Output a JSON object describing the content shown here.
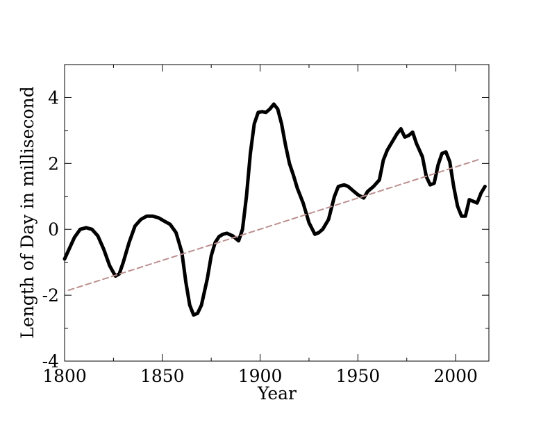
{
  "chart_data": {
    "type": "line",
    "xlabel": "Year",
    "ylabel": "Length of Day in millisecond",
    "xlim": [
      1800,
      2017
    ],
    "ylim": [
      -4,
      5
    ],
    "x_ticks": [
      1800,
      1850,
      1900,
      1950,
      2000
    ],
    "x_tick_labels": [
      "1800",
      "1850",
      "1900",
      "1950",
      "2000"
    ],
    "y_ticks": [
      -4,
      -2,
      0,
      2,
      4
    ],
    "y_tick_labels": [
      "-4",
      "-2",
      "0",
      "2",
      "4"
    ],
    "grid": false,
    "legend": "none",
    "series": [
      {
        "style": "solid",
        "color": "#000000",
        "x": [
          1800,
          1805,
          1808,
          1811,
          1814,
          1817,
          1820,
          1823,
          1826,
          1828,
          1830,
          1833,
          1836,
          1839,
          1842,
          1845,
          1848,
          1851,
          1854,
          1857,
          1860,
          1862,
          1864,
          1866,
          1868,
          1870,
          1873,
          1875,
          1877,
          1879,
          1881,
          1883,
          1886,
          1889,
          1891,
          1893,
          1895,
          1897,
          1899,
          1901,
          1903,
          1905,
          1907,
          1909,
          1911,
          1913,
          1915,
          1917,
          1919,
          1922,
          1925,
          1928,
          1930,
          1932,
          1935,
          1938,
          1940,
          1943,
          1945,
          1948,
          1950,
          1953,
          1955,
          1958,
          1961,
          1963,
          1965,
          1967,
          1970,
          1972,
          1974,
          1976,
          1978,
          1980,
          1983,
          1985,
          1987,
          1989,
          1991,
          1993,
          1995,
          1997,
          1999,
          2001,
          2003,
          2005,
          2007,
          2009,
          2011,
          2013,
          2015
        ],
        "y": [
          -0.9,
          -0.25,
          0.0,
          0.05,
          0.0,
          -0.2,
          -0.6,
          -1.1,
          -1.42,
          -1.35,
          -1.0,
          -0.4,
          0.1,
          0.3,
          0.4,
          0.4,
          0.35,
          0.25,
          0.15,
          -0.1,
          -0.7,
          -1.6,
          -2.3,
          -2.6,
          -2.55,
          -2.3,
          -1.5,
          -0.8,
          -0.4,
          -0.22,
          -0.15,
          -0.12,
          -0.2,
          -0.35,
          0.0,
          1.0,
          2.3,
          3.2,
          3.55,
          3.57,
          3.55,
          3.65,
          3.8,
          3.65,
          3.2,
          2.55,
          2.0,
          1.65,
          1.25,
          0.8,
          0.2,
          -0.15,
          -0.1,
          0.0,
          0.3,
          1.0,
          1.3,
          1.35,
          1.3,
          1.15,
          1.05,
          0.95,
          1.15,
          1.3,
          1.5,
          2.1,
          2.4,
          2.6,
          2.9,
          3.05,
          2.8,
          2.85,
          2.95,
          2.6,
          2.2,
          1.6,
          1.35,
          1.4,
          1.95,
          2.3,
          2.35,
          2.05,
          1.3,
          0.7,
          0.4,
          0.4,
          0.9,
          0.85,
          0.8,
          1.1,
          1.3
        ]
      },
      {
        "style": "dashed",
        "color": "#bc8f8f",
        "x": [
          1802,
          2012
        ],
        "y": [
          -1.85,
          2.12
        ]
      }
    ]
  }
}
